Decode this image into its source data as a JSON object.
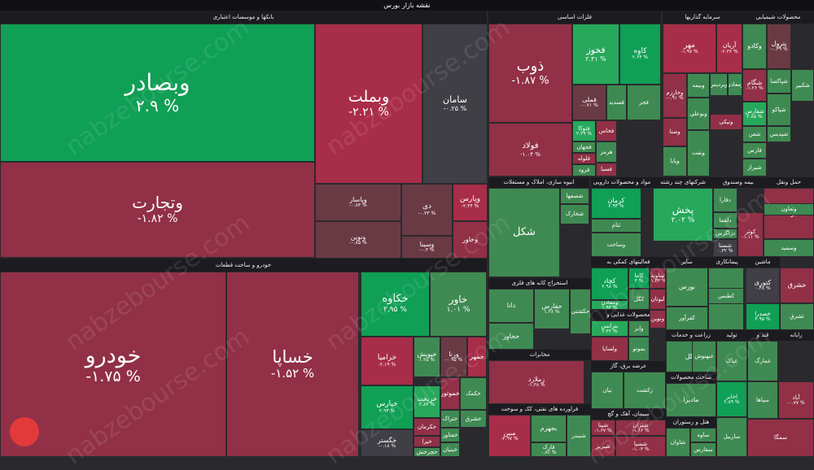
{
  "page_title": "نقشه بازار بورس",
  "watermark": "nabzebourse.com",
  "colors": {
    "g3": "#0f9f55",
    "g2": "#27a85b",
    "g1": "#3f8a52",
    "n": "#3f3f45",
    "r1": "#6a3a44",
    "r2": "#913047",
    "r3": "#a82d48"
  },
  "chart_data": {
    "type": "treemap",
    "title": "نقشه بازار بورس",
    "sectors": [
      {
        "name": "بانکها و موسسات اعتباری"
      },
      {
        "name": "خودرو و ساخت قطعات"
      },
      {
        "name": "فلزات اساسی"
      },
      {
        "name": "سرمایه گذاریها"
      },
      {
        "name": "محصولات شیمیایی"
      },
      {
        "name": "انبوه سازی، املاک و مستغلات"
      },
      {
        "name": "مواد و محصولات دارویی"
      },
      {
        "name": "شرکتهای چند رشته"
      },
      {
        "name": "بیمه وصندوق"
      },
      {
        "name": "حمل ونقل"
      },
      {
        "name": "استخراج کانه های فلزی"
      },
      {
        "name": "فعالیتهای کمکی به"
      },
      {
        "name": "سایر"
      },
      {
        "name": "پیمانکاری"
      },
      {
        "name": "ماشین"
      },
      {
        "name": "محصولات غذایی و"
      },
      {
        "name": "زراعت و خدمات"
      },
      {
        "name": "تولید"
      },
      {
        "name": "قند و"
      },
      {
        "name": "رایانه"
      },
      {
        "name": "مخابرات"
      },
      {
        "name": "عرضه برق، گاز"
      },
      {
        "name": "ساخت محصولات"
      },
      {
        "name": "فراورده های نفتی، کک و سوخت"
      },
      {
        "name": "سیمان، آهک و گچ"
      },
      {
        "name": "هتل و رستوران"
      }
    ],
    "tiles": [
      {
        "name": "وبصادر",
        "change": "۲.۹ %",
        "c": "g3"
      },
      {
        "name": "وبملت",
        "change": "-۲.۲۱ %",
        "c": "r3"
      },
      {
        "name": "سامان",
        "change": "-۰.۲۵ %",
        "c": "n"
      },
      {
        "name": "وتجارت",
        "change": "-۱.۸۲ %",
        "c": "r2"
      },
      {
        "name": "وپاسار",
        "change": "-۰.۸۳ %",
        "c": "r1"
      },
      {
        "name": "دی",
        "change": "-۰.۳۳ %",
        "c": "r1"
      },
      {
        "name": "وپارس",
        "change": "-۲.۴۴ %",
        "c": "r3"
      },
      {
        "name": "ونوین",
        "change": "-۰.۸۵ %",
        "c": "r1"
      },
      {
        "name": "وسینا",
        "change": "-۰.۳ %",
        "c": "r1"
      },
      {
        "name": "وخاور",
        "change": "",
        "c": "r2"
      },
      {
        "name": "خودرو",
        "change": "-۱.۷۵ %",
        "c": "r2"
      },
      {
        "name": "خساپا",
        "change": "-۱.۵۲ %",
        "c": "r2"
      },
      {
        "name": "خکاوه",
        "change": "۲.۹۵ %",
        "c": "g3"
      },
      {
        "name": "خاور",
        "change": "۱.۰۱ %",
        "c": "g1"
      },
      {
        "name": "خزامیا",
        "change": "-۲.۱۹ %",
        "c": "r3"
      },
      {
        "name": "خپویش",
        "change": "۱.۲۵ %",
        "c": "g1"
      },
      {
        "name": "ورنا",
        "change": "-۰.۹۵ %",
        "c": "r1"
      },
      {
        "name": "خمهر",
        "change": "",
        "c": "r3"
      },
      {
        "name": "خپارس",
        "change": "۲.۹۴ %",
        "c": "g3"
      },
      {
        "name": "خریخت",
        "change": "۲.۸۳ %",
        "c": "g2"
      },
      {
        "name": "خموتور",
        "change": "",
        "c": "r2"
      },
      {
        "name": "خکمک",
        "change": "",
        "c": "g1"
      },
      {
        "name": "خشرق",
        "change": "",
        "c": "g1"
      },
      {
        "name": "خکرمان",
        "change": "",
        "c": "r2"
      },
      {
        "name": "ختراک",
        "change": "",
        "c": "g1"
      },
      {
        "name": "خفناور",
        "change": "",
        "c": "g1"
      },
      {
        "name": "خبنیان",
        "change": "",
        "c": "g1"
      },
      {
        "name": "خگستر",
        "change": "-۰.۱۸ %",
        "c": "n"
      },
      {
        "name": "خیرا",
        "change": "",
        "c": "r2"
      },
      {
        "name": "خچرخش",
        "change": "",
        "c": "g1"
      },
      {
        "name": "ذوب",
        "change": "-۱.۸۷ %",
        "c": "r2"
      },
      {
        "name": "فخوز",
        "change": "۲.۳۱ %",
        "c": "g2"
      },
      {
        "name": "کاوه",
        "change": "۲.۶۴ %",
        "c": "g3"
      },
      {
        "name": "فملی",
        "change": "-۰.۷۱ %",
        "c": "r1"
      },
      {
        "name": "فجر",
        "change": "",
        "c": "g1"
      },
      {
        "name": "فسدید",
        "change": "",
        "c": "g1"
      },
      {
        "name": "فولاد",
        "change": "-۱.۰۴ %",
        "c": "r2"
      },
      {
        "name": "فتوکا",
        "change": "۲.۲۹ %",
        "c": "g2"
      },
      {
        "name": "فخاس",
        "change": "",
        "c": "r2"
      },
      {
        "name": "فجهان",
        "change": "",
        "c": "g1"
      },
      {
        "name": "فلوله",
        "change": "",
        "c": "r2"
      },
      {
        "name": "هرمز",
        "change": "",
        "c": "g1"
      },
      {
        "name": "فسبا",
        "change": "",
        "c": "r2"
      },
      {
        "name": "فرود",
        "change": "",
        "c": "g1"
      },
      {
        "name": "مهر",
        "change": "-۱.۹۷ %",
        "c": "r3"
      },
      {
        "name": "آریان",
        "change": "-۲.۳۶ %",
        "c": "r3"
      },
      {
        "name": "وخارزم",
        "change": "-۰.۹۱ %",
        "c": "r2"
      },
      {
        "name": "وبیمه",
        "change": "",
        "c": "g1"
      },
      {
        "name": "وپردیس",
        "change": "",
        "c": "g1"
      },
      {
        "name": "ومعادن",
        "change": "",
        "c": "g1"
      },
      {
        "name": "وبوعلی",
        "change": "",
        "c": "g1"
      },
      {
        "name": "وصنا",
        "change": "",
        "c": "r2"
      },
      {
        "name": "وپایا",
        "change": "",
        "c": "g1"
      },
      {
        "name": "ونیکی",
        "change": "",
        "c": "r2"
      },
      {
        "name": "ونفت",
        "change": "",
        "c": "g1"
      },
      {
        "name": "وکادو",
        "change": "",
        "c": "g1"
      },
      {
        "name": "پترول",
        "change": "-۰.۳۹ %",
        "c": "r1"
      },
      {
        "name": "شگام",
        "change": "-۱.۲۶ %",
        "c": "r2"
      },
      {
        "name": "شفارس",
        "change": "۲.۸۵ %",
        "c": "g2"
      },
      {
        "name": "شپاکسا",
        "change": "",
        "c": "g1"
      },
      {
        "name": "شکبیر",
        "change": "",
        "c": "g1"
      },
      {
        "name": "شپاکو",
        "change": "",
        "c": "g1"
      },
      {
        "name": "شفن",
        "change": "",
        "c": "g1"
      },
      {
        "name": "شپدیس",
        "change": "",
        "c": "g1"
      },
      {
        "name": "فارس",
        "change": "",
        "c": "g1"
      },
      {
        "name": "شیراز",
        "change": "",
        "c": "g1"
      },
      {
        "name": "شکل",
        "change": "",
        "c": "g1"
      },
      {
        "name": "شصفها",
        "change": "",
        "c": "g1"
      },
      {
        "name": "شخارک",
        "change": "",
        "c": "g1"
      },
      {
        "name": "کرمان",
        "change": "۲.۹۴ %",
        "c": "g3"
      },
      {
        "name": "ثتام",
        "change": "",
        "c": "g1"
      },
      {
        "name": "وساخت",
        "change": "",
        "c": "g1"
      },
      {
        "name": "پخش",
        "change": "۲.۰۲ %",
        "c": "g2"
      },
      {
        "name": "دفارا",
        "change": "",
        "c": "g1"
      },
      {
        "name": "دلقما",
        "change": "",
        "c": "g1"
      },
      {
        "name": "دزاگرس",
        "change": "",
        "c": "g1"
      },
      {
        "name": "شستا",
        "change": "۰.۳۲ %",
        "c": "n"
      },
      {
        "name": "کوثر",
        "change": "-۱.۱۱ %",
        "c": "r2"
      },
      {
        "name": "برکت",
        "change": "",
        "c": "r2"
      },
      {
        "name": "وسمید",
        "change": "",
        "c": "g1"
      },
      {
        "name": "وتعاون",
        "change": "",
        "c": "g1"
      },
      {
        "name": "دانا",
        "change": "",
        "c": "g1"
      },
      {
        "name": "حفارس",
        "change": "۱.۲۸ %",
        "c": "g1"
      },
      {
        "name": "حکشتی",
        "change": "",
        "c": "g1"
      },
      {
        "name": "حخاور",
        "change": "",
        "c": "g1"
      },
      {
        "name": "کچاد",
        "change": "۲.۹۸ %",
        "c": "g3"
      },
      {
        "name": "کاما",
        "change": "۳ %",
        "c": "g3"
      },
      {
        "name": "کگل",
        "change": "",
        "c": "g1"
      },
      {
        "name": "ومعادن",
        "change": "۱.۹۳ %",
        "c": "g2"
      },
      {
        "name": "تماوند",
        "change": "-۱.۳۲ %",
        "c": "r2"
      },
      {
        "name": "لبوتان",
        "change": "",
        "c": "r2"
      },
      {
        "name": "ونوین",
        "change": "",
        "c": "r2"
      },
      {
        "name": "بورس",
        "change": "",
        "c": "g1"
      },
      {
        "name": "کفرآور",
        "change": "",
        "c": "g1"
      },
      {
        "name": "کلوند",
        "change": "",
        "c": "g1"
      },
      {
        "name": "کطبس",
        "change": "",
        "c": "g1"
      },
      {
        "name": "کتوری",
        "change": "۰.۴۸ %",
        "c": "n"
      },
      {
        "name": "خشرق",
        "change": "",
        "c": "r2"
      },
      {
        "name": "خصدرا",
        "change": "۲.۹۵ %",
        "c": "g3"
      },
      {
        "name": "ثشرق",
        "change": "",
        "c": "g1"
      },
      {
        "name": "بترانس",
        "change": "۲.۳۶ %",
        "c": "g2"
      },
      {
        "name": "وابر",
        "change": "",
        "c": "g1"
      },
      {
        "name": "بموتو",
        "change": "",
        "c": "g1"
      },
      {
        "name": "ولساپا",
        "change": "",
        "c": "r2"
      },
      {
        "name": "غگل",
        "change": "",
        "c": "g1"
      },
      {
        "name": "غبهنوش",
        "change": "",
        "c": "g1"
      },
      {
        "name": "غپاک",
        "change": "",
        "c": "g1"
      },
      {
        "name": "غمارگ",
        "change": "",
        "c": "g1"
      },
      {
        "name": "زملارد",
        "change": "-۱.۳۸ %",
        "c": "r2"
      },
      {
        "name": "زکشت",
        "change": "",
        "c": "g1"
      },
      {
        "name": "نیان",
        "change": "",
        "c": "g1"
      },
      {
        "name": "مادیرا",
        "change": "",
        "c": "g1"
      },
      {
        "name": "اخابر",
        "change": "۲.۸۹ %",
        "c": "g3"
      },
      {
        "name": "بجهرم",
        "change": "",
        "c": "g1"
      },
      {
        "name": "مبین",
        "change": "-۲.۹۷ %",
        "c": "r3"
      },
      {
        "name": "فارک",
        "change": "۰.۸۲ %",
        "c": "g1"
      },
      {
        "name": "شبندر",
        "change": "",
        "c": "g1"
      },
      {
        "name": "شپنا",
        "change": "-۱.۶۷ %",
        "c": "r2"
      },
      {
        "name": "شتران",
        "change": "-۱.۶۶ %",
        "c": "r2"
      },
      {
        "name": "شسپا",
        "change": "-۱.۰۳ %",
        "c": "r2"
      },
      {
        "name": "شبریز",
        "change": "",
        "c": "r2"
      },
      {
        "name": "شاوان",
        "change": "",
        "c": "g1"
      },
      {
        "name": "ساوه",
        "change": "",
        "c": "g1"
      },
      {
        "name": "سفارس",
        "change": "",
        "c": "g1"
      },
      {
        "name": "سپاها",
        "change": "",
        "c": "g1"
      },
      {
        "name": "ساربیل",
        "change": "",
        "c": "g1"
      },
      {
        "name": "آباد",
        "change": "-۰.۷۷ %",
        "c": "r2"
      },
      {
        "name": "سمگا",
        "change": "",
        "c": "r2"
      },
      {
        "name": "گدنا",
        "change": "",
        "c": "g1"
      },
      {
        "name": "فخاس",
        "change": "",
        "c": "r2"
      },
      {
        "name": "کیسون",
        "change": "",
        "c": "g1"
      },
      {
        "name": "تکنا",
        "change": "",
        "c": "g1"
      },
      {
        "name": "حفاری",
        "change": "",
        "c": "g1"
      }
    ]
  }
}
